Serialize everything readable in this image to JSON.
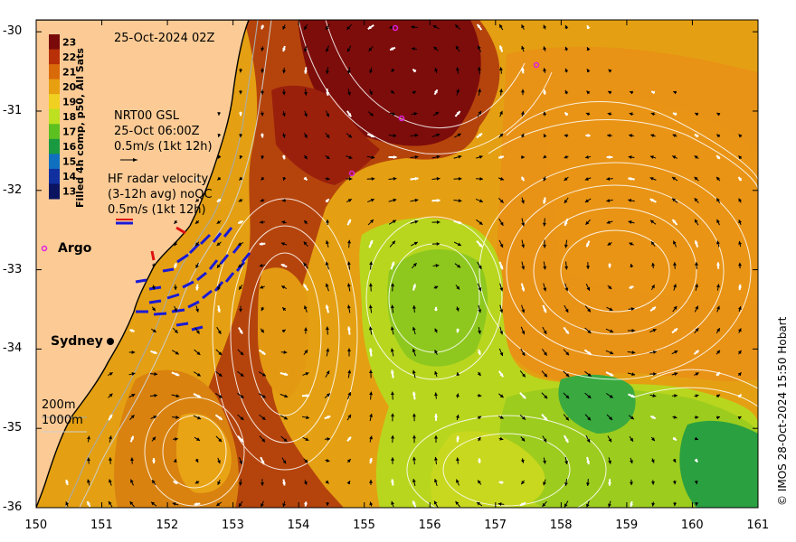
{
  "map": {
    "date": "25-Oct-2024 02Z",
    "copyright": "© IMOS 28-Oct-2024 15:50 Hobart",
    "lon_ticks": [
      "150",
      "151",
      "152",
      "153",
      "154",
      "155",
      "156",
      "157",
      "158",
      "159",
      "160",
      "161"
    ],
    "lat_ticks": [
      "-30",
      "-31",
      "-32",
      "-33",
      "-34",
      "-35",
      "-36"
    ],
    "lon_range": [
      150,
      161
    ],
    "lat_range": [
      -36,
      -29.85
    ],
    "colorbar": {
      "title": "Filled 4h comp, p50, All Sats",
      "labels": [
        "23",
        "22",
        "21",
        "20",
        "19",
        "18",
        "17",
        "16",
        "15",
        "14",
        "13"
      ],
      "colors": [
        "#7a0a0a",
        "#b83008",
        "#d96a0a",
        "#e8a010",
        "#f0d020",
        "#bde020",
        "#5cc020",
        "#1a9a40",
        "#1070c0",
        "#1030a0",
        "#0a1460"
      ]
    },
    "legend": {
      "gsl_title": "NRT00 GSL",
      "gsl_time": "25-Oct 06:00Z",
      "gsl_scale": "0.5m/s (1kt 12h)",
      "radar_line1": "HF radar velocity",
      "radar_line2": "(3-12h avg) noQC",
      "radar_scale": "0.5m/s (1kt 12h)",
      "argo": "Argo",
      "depth1": "200m",
      "depth2": "1000m"
    },
    "places": {
      "sydney": "Sydney"
    }
  }
}
